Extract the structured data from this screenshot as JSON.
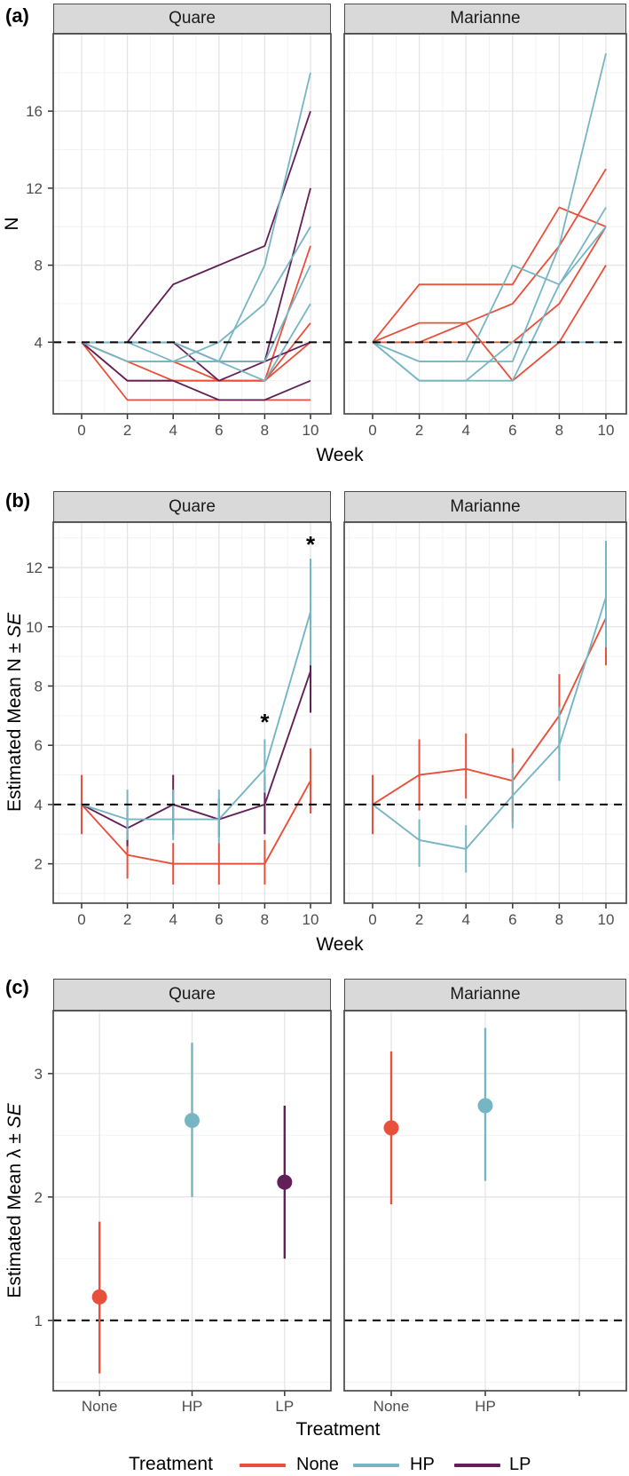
{
  "colors": {
    "None": "#E8503B",
    "HP": "#76B6C4",
    "LP": "#632058",
    "reference_line": "#000000",
    "strip_bg": "#D9D9D9",
    "panel_border": "#4a4a4a",
    "grid_major": "#E4E4E4",
    "grid_minor": "#F0F0F0",
    "tick_text": "#4d4d4d"
  },
  "legend": {
    "title": "Treatment",
    "items": [
      {
        "label": "None",
        "color_key": "None"
      },
      {
        "label": "HP",
        "color_key": "HP"
      },
      {
        "label": "LP",
        "color_key": "LP"
      }
    ]
  },
  "chart_data": [
    {
      "id": "a",
      "panel_label": "(a)",
      "type": "line",
      "xlabel": "Week",
      "ylabel_prefix": "N",
      "ylabel_em": "",
      "x": [
        0,
        2,
        4,
        6,
        8,
        10
      ],
      "xticks": [
        0,
        2,
        4,
        6,
        8,
        10
      ],
      "yticks": [
        4,
        8,
        12,
        16
      ],
      "ylim": [
        0.28,
        20.02
      ],
      "hline": 4,
      "facets": [
        {
          "name": "Quare",
          "series": [
            {
              "treatment": "None",
              "values": [
                4,
                3,
                2,
                2,
                2,
                9
              ]
            },
            {
              "treatment": "None",
              "values": [
                4,
                2,
                2,
                2,
                2,
                5
              ]
            },
            {
              "treatment": "None",
              "values": [
                4,
                3,
                3,
                2,
                2,
                4
              ]
            },
            {
              "treatment": "None",
              "values": [
                4,
                1,
                1,
                1,
                1,
                1
              ]
            },
            {
              "treatment": "LP",
              "values": [
                4,
                4,
                7,
                8,
                9,
                16
              ]
            },
            {
              "treatment": "LP",
              "values": [
                4,
                4,
                4,
                3,
                3,
                12
              ]
            },
            {
              "treatment": "LP",
              "values": [
                4,
                4,
                4,
                2,
                3,
                4
              ]
            },
            {
              "treatment": "LP",
              "values": [
                4,
                2,
                2,
                1,
                1,
                2
              ]
            },
            {
              "treatment": "HP",
              "values": [
                4,
                4,
                3,
                3,
                8,
                18
              ]
            },
            {
              "treatment": "HP",
              "values": [
                4,
                3,
                3,
                4,
                6,
                10
              ]
            },
            {
              "treatment": "HP",
              "values": [
                4,
                3,
                3,
                3,
                3,
                8
              ]
            },
            {
              "treatment": "HP",
              "values": [
                4,
                4,
                4,
                3,
                2,
                6
              ]
            }
          ]
        },
        {
          "name": "Marianne",
          "series": [
            {
              "treatment": "None",
              "values": [
                4,
                7,
                7,
                7,
                11,
                10
              ]
            },
            {
              "treatment": "None",
              "values": [
                4,
                5,
                5,
                6,
                9,
                13
              ]
            },
            {
              "treatment": "None",
              "values": [
                4,
                4,
                5,
                2,
                4,
                8
              ]
            },
            {
              "treatment": "None",
              "values": [
                4,
                4,
                4,
                4,
                6,
                10
              ]
            },
            {
              "treatment": "HP",
              "values": [
                4,
                3,
                3,
                3,
                9,
                19
              ]
            },
            {
              "treatment": "HP",
              "values": [
                4,
                2,
                2,
                2,
                7,
                11
              ]
            },
            {
              "treatment": "HP",
              "values": [
                4,
                3,
                3,
                8,
                7,
                10
              ]
            },
            {
              "treatment": "HP",
              "values": [
                4,
                2,
                2,
                4,
                4,
                4
              ]
            }
          ]
        }
      ]
    },
    {
      "id": "b",
      "panel_label": "(b)",
      "type": "line-errorbar",
      "xlabel": "Week",
      "ylabel_prefix": "Estimated Mean N ± ",
      "ylabel_em": "SE",
      "x": [
        0,
        2,
        4,
        6,
        8,
        10
      ],
      "xticks": [
        0,
        2,
        4,
        6,
        8,
        10
      ],
      "yticks": [
        2,
        4,
        6,
        8,
        10,
        12
      ],
      "ylim": [
        0.67,
        13.53
      ],
      "hline": 4,
      "facets": [
        {
          "name": "Quare",
          "series": [
            {
              "treatment": "None",
              "mean": [
                4,
                2.3,
                2,
                2,
                2,
                4.8
              ],
              "err_lo": [
                3,
                1.5,
                1.3,
                1.3,
                1.3,
                3.7
              ],
              "err_hi": [
                5,
                3.1,
                2.7,
                2.7,
                2.8,
                5.9
              ]
            },
            {
              "treatment": "LP",
              "mean": [
                4,
                3.2,
                4,
                3.5,
                4,
                8.5
              ],
              "err_lo": [
                null,
                2.6,
                3.0,
                2.9,
                3.0,
                7.1
              ],
              "err_hi": [
                null,
                3.9,
                5.0,
                4.2,
                5.0,
                9.0
              ]
            },
            {
              "treatment": "HP",
              "mean": [
                4,
                3.5,
                3.5,
                3.5,
                5.2,
                10.5
              ],
              "err_lo": [
                null,
                2.8,
                2.8,
                2.7,
                4.4,
                8.7
              ],
              "err_hi": [
                null,
                4.5,
                4.5,
                4.5,
                6.2,
                12.3
              ]
            }
          ],
          "annotations": [
            {
              "text": "*",
              "x": 8,
              "y": 6.9
            },
            {
              "text": "*",
              "x": 10,
              "y": 12.9
            }
          ]
        },
        {
          "name": "Marianne",
          "series": [
            {
              "treatment": "None",
              "mean": [
                4,
                5.0,
                5.2,
                4.8,
                7.0,
                10.3
              ],
              "err_lo": [
                3,
                3.8,
                4.2,
                3.4,
                5.7,
                8.7
              ],
              "err_hi": [
                5,
                6.2,
                6.4,
                5.9,
                8.4,
                12.0
              ]
            },
            {
              "treatment": "HP",
              "mean": [
                4,
                2.8,
                2.5,
                4.3,
                6.0,
                11.0
              ],
              "err_lo": [
                null,
                1.9,
                1.7,
                3.2,
                4.8,
                9.3
              ],
              "err_hi": [
                null,
                3.5,
                3.3,
                5.4,
                7.3,
                12.9
              ]
            }
          ],
          "annotations": []
        }
      ]
    },
    {
      "id": "c",
      "panel_label": "(c)",
      "type": "point-errorbar",
      "xlabel": "Treatment",
      "ylabel_prefix": "Estimated Mean λ ± ",
      "ylabel_em": "SE",
      "categories": [
        "None",
        "HP",
        "LP"
      ],
      "yticks": [
        1,
        2,
        3
      ],
      "ylim": [
        0.43,
        3.51
      ],
      "hline": 1,
      "facets": [
        {
          "name": "Quare",
          "x_labels": [
            "None",
            "HP",
            "LP"
          ],
          "points": [
            {
              "treatment": "None",
              "mean": 1.19,
              "lo": 0.57,
              "hi": 1.8
            },
            {
              "treatment": "HP",
              "mean": 2.62,
              "lo": 2.0,
              "hi": 3.25
            },
            {
              "treatment": "LP",
              "mean": 2.12,
              "lo": 1.5,
              "hi": 2.74
            }
          ]
        },
        {
          "name": "Marianne",
          "x_labels": [
            "None",
            "HP",
            ""
          ],
          "points": [
            {
              "treatment": "None",
              "mean": 2.56,
              "lo": 1.94,
              "hi": 3.18
            },
            {
              "treatment": "HP",
              "mean": 2.74,
              "lo": 2.13,
              "hi": 3.37
            }
          ]
        }
      ]
    }
  ]
}
